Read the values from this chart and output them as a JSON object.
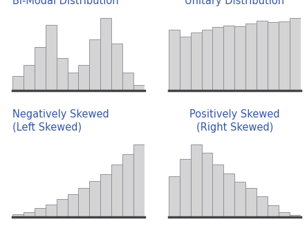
{
  "bimodal": [
    2,
    3.5,
    6,
    9,
    4.5,
    2.5,
    3.5,
    7,
    10,
    6.5,
    2.5,
    0.8
  ],
  "unitary": [
    6.5,
    5.8,
    6.2,
    6.5,
    6.8,
    7.0,
    6.9,
    7.2,
    7.5,
    7.3,
    7.4,
    7.8
  ],
  "left_skewed": [
    0.5,
    1.0,
    1.8,
    2.5,
    3.5,
    4.5,
    5.8,
    7.2,
    8.5,
    10.5,
    12.5,
    14.5
  ],
  "right_skewed": [
    7.0,
    10.0,
    12.5,
    11.0,
    9.0,
    7.5,
    6.0,
    5.0,
    3.5,
    2.0,
    0.8,
    0.4
  ],
  "bar_color": "#d4d4d4",
  "bar_edge_color": "#888898",
  "title_color": "#3355aa",
  "titles": [
    "Bi-Modal Distribution",
    "Unitary Distribution",
    "Negatively Skewed\n(Left Skewed)",
    "Positively Skewed\n(Right Skewed)"
  ],
  "title_fontsize": 10.5,
  "background_color": "#ffffff",
  "spine_color": "#444444",
  "spine_linewidth": 2.5
}
